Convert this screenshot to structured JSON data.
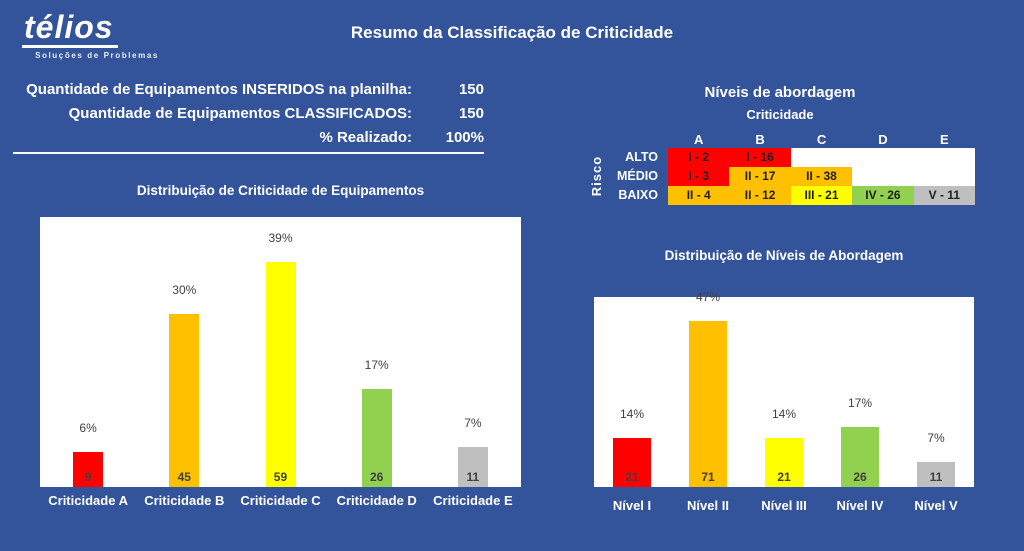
{
  "colors": {
    "background": "#33549A",
    "red": "#FF0000",
    "orange": "#FFC000",
    "yellow": "#FFFF00",
    "green": "#92D050",
    "gray": "#BFBFBF",
    "data_label": "#404040"
  },
  "logo": {
    "brand": "télios",
    "tagline": "Soluções de Problemas"
  },
  "header": {
    "title": "Resumo da Classificação de Criticidade"
  },
  "summary": {
    "rows": [
      {
        "label": "Quantidade de Equipamentos INSERIDOS na planilha:",
        "value": "150"
      },
      {
        "label": "Quantidade de Equipamentos CLASSIFICADOS:",
        "value": "150"
      },
      {
        "label": "% Realizado:",
        "value": "100%"
      }
    ]
  },
  "matrix": {
    "title": "Níveis de abordagem",
    "column_group_label": "Criticidade",
    "row_group_label": "Risco",
    "columns": [
      "A",
      "B",
      "C",
      "D",
      "E"
    ],
    "rows": [
      {
        "label": "ALTO",
        "cells": [
          {
            "text": "I - 2",
            "color": "#FF0000"
          },
          {
            "text": "I - 16",
            "color": "#FF0000"
          },
          {
            "text": "",
            "color": "#FFFFFF"
          },
          {
            "text": "",
            "color": "#FFFFFF"
          },
          {
            "text": "",
            "color": "#FFFFFF"
          }
        ]
      },
      {
        "label": "MÉDIO",
        "cells": [
          {
            "text": "I - 3",
            "color": "#FF0000"
          },
          {
            "text": "II - 17",
            "color": "#FFC000"
          },
          {
            "text": "II - 38",
            "color": "#FFC000"
          },
          {
            "text": "",
            "color": "#FFFFFF"
          },
          {
            "text": "",
            "color": "#FFFFFF"
          }
        ]
      },
      {
        "label": "BAIXO",
        "cells": [
          {
            "text": "II - 4",
            "color": "#FFC000"
          },
          {
            "text": "II - 12",
            "color": "#FFC000"
          },
          {
            "text": "III - 21",
            "color": "#FFFF00"
          },
          {
            "text": "IV - 26",
            "color": "#92D050"
          },
          {
            "text": "V - 11",
            "color": "#BFBFBF"
          }
        ]
      }
    ]
  },
  "chart_data": [
    {
      "type": "bar",
      "title": "Distribuição de Criticidade de Equipamentos",
      "categories": [
        "Criticidade A",
        "Criticidade B",
        "Criticidade C",
        "Criticidade D",
        "Criticidade E"
      ],
      "values": [
        9,
        45,
        59,
        26,
        11
      ],
      "percent_labels": [
        "6%",
        "30%",
        "39%",
        "17%",
        "7%"
      ],
      "bar_colors": [
        "#FF0000",
        "#FFC000",
        "#FFFF00",
        "#92D050",
        "#BFBFBF"
      ],
      "xlabel": "",
      "ylabel": "",
      "legend": "none",
      "gridlines": false
    },
    {
      "type": "bar",
      "title": "Distribuição de Níveis de Abordagem",
      "categories": [
        "Nível I",
        "Nível II",
        "Nível III",
        "Nível IV",
        "Nível V"
      ],
      "values": [
        21,
        71,
        21,
        26,
        11
      ],
      "percent_labels": [
        "14%",
        "47%",
        "14%",
        "17%",
        "7%"
      ],
      "bar_colors": [
        "#FF0000",
        "#FFC000",
        "#FFFF00",
        "#92D050",
        "#BFBFBF"
      ],
      "xlabel": "",
      "ylabel": "",
      "legend": "none",
      "gridlines": false
    }
  ]
}
